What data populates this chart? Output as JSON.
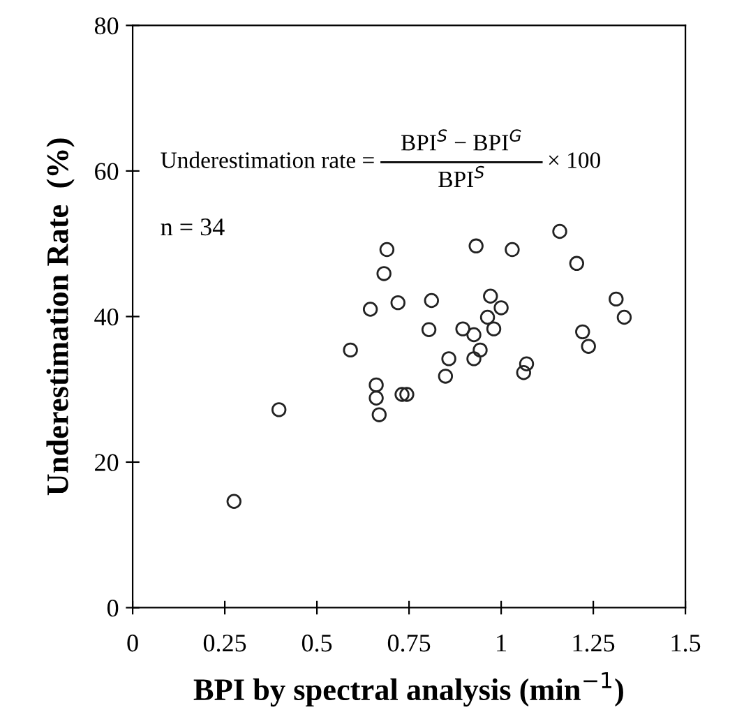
{
  "chart_data": {
    "type": "scatter",
    "xlabel": "BPI by spectral analysis (min$^{−1}$)",
    "ylabel": "Underestimation Rate  (%)",
    "annotations": [
      "Underestimation rate =",
      "BPI$^{S}$ − BPI$^{G}$",
      "BPI$^{S}$",
      "× 100",
      "n = 34"
    ],
    "series": [
      {
        "color": "#222222",
        "x": [
          0.275,
          0.397,
          0.591,
          0.645,
          0.69,
          0.682,
          0.72,
          0.811,
          0.804,
          0.661,
          0.661,
          0.669,
          0.731,
          0.744,
          0.858,
          0.849,
          0.896,
          1.159,
          0.932,
          1.03,
          1.205,
          0.971,
          1.0,
          0.963,
          0.98,
          0.926,
          0.943,
          0.926,
          1.069,
          1.061,
          1.312,
          1.334,
          1.221,
          1.237
        ],
        "values": [
          14.6,
          27.2,
          35.4,
          41.0,
          49.2,
          45.9,
          41.9,
          42.2,
          38.2,
          30.6,
          28.8,
          26.5,
          29.3,
          29.3,
          34.2,
          31.8,
          38.3,
          51.7,
          49.7,
          49.2,
          47.3,
          42.8,
          41.2,
          39.9,
          38.3,
          37.5,
          35.4,
          34.2,
          33.5,
          32.3,
          42.4,
          39.9,
          37.9,
          35.9
        ]
      }
    ],
    "marker": "circle",
    "xlim": [
      0,
      1.5
    ],
    "xticks": [
      0,
      0.25,
      0.5,
      0.75,
      1,
      1.25,
      1.5
    ],
    "ylim": [
      0,
      80
    ],
    "yticks": [
      0,
      20,
      40,
      60,
      80
    ],
    "grid": false
  }
}
